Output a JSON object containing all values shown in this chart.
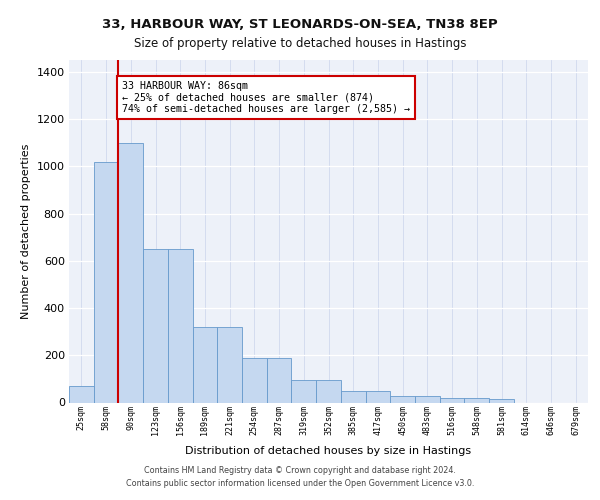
{
  "title_line1": "33, HARBOUR WAY, ST LEONARDS-ON-SEA, TN38 8EP",
  "title_line2": "Size of property relative to detached houses in Hastings",
  "xlabel": "Distribution of detached houses by size in Hastings",
  "ylabel": "Number of detached properties",
  "categories": [
    "25sqm",
    "58sqm",
    "90sqm",
    "123sqm",
    "156sqm",
    "189sqm",
    "221sqm",
    "254sqm",
    "287sqm",
    "319sqm",
    "352sqm",
    "385sqm",
    "417sqm",
    "450sqm",
    "483sqm",
    "516sqm",
    "548sqm",
    "581sqm",
    "614sqm",
    "646sqm",
    "679sqm"
  ],
  "values": [
    68,
    1020,
    1100,
    650,
    650,
    320,
    320,
    190,
    190,
    95,
    95,
    50,
    50,
    28,
    28,
    20,
    20,
    14,
    0,
    0,
    0
  ],
  "bar_color": "#c5d8f0",
  "bar_edge_color": "#6699cc",
  "annotation_text": "33 HARBOUR WAY: 86sqm\n← 25% of detached houses are smaller (874)\n74% of semi-detached houses are larger (2,585) →",
  "annotation_box_color": "#ffffff",
  "annotation_box_edge": "#cc0000",
  "red_line_x": 1.5,
  "ylim": [
    0,
    1450
  ],
  "yticks": [
    0,
    200,
    400,
    600,
    800,
    1000,
    1200,
    1400
  ],
  "bg_color": "#edf1f9",
  "footer_line1": "Contains HM Land Registry data © Crown copyright and database right 2024.",
  "footer_line2": "Contains public sector information licensed under the Open Government Licence v3.0."
}
